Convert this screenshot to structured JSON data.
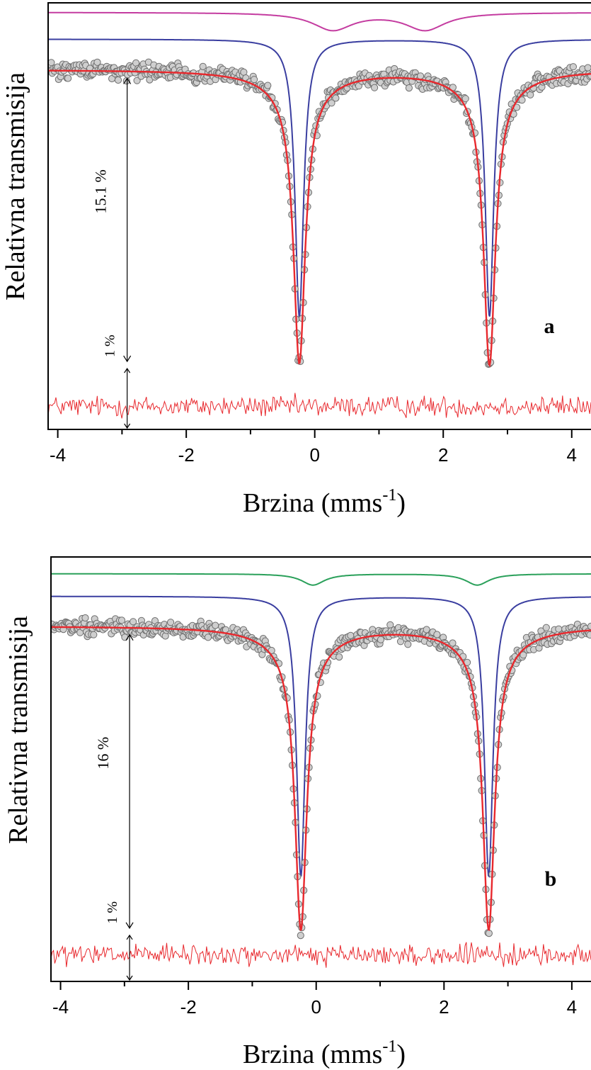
{
  "chart_data": [
    {
      "type": "scatter",
      "panel_label": "a",
      "ylabel": "Relativna transmisija",
      "xlabel_main": "Brzina (mms",
      "xlabel_sup": "-1",
      "xlabel_close": ")",
      "xlim": [
        -4.15,
        4.3
      ],
      "xticks": [
        -4,
        -2,
        0,
        2,
        4
      ],
      "xtick_labels": [
        "-4",
        "-2",
        "0",
        "2",
        "4"
      ],
      "minor_xticks": [
        -3,
        -1,
        1,
        3
      ],
      "ylim": [
        -18.8,
        3.5
      ],
      "baseline_percent": 0,
      "depth_label": "15.1 %",
      "depth_percent": 15.1,
      "residual_scale_label": "1 %",
      "residual_offset_percent": -17.6,
      "series": [
        {
          "role": "data",
          "color": "#8f8f8f",
          "peaks": [
            {
              "center": -0.24,
              "depth": 14.2,
              "hwhm": 0.11
            },
            {
              "center": 2.72,
              "depth": 14.3,
              "hwhm": 0.11
            }
          ],
          "broad": [
            {
              "center": -0.24,
              "depth": 1.1,
              "hwhm": 0.55
            },
            {
              "center": 2.72,
              "depth": 1.1,
              "hwhm": 0.55
            }
          ]
        },
        {
          "role": "fit",
          "color": "#e8282d",
          "peaks": [
            {
              "center": -0.24,
              "depth": 14.2,
              "hwhm": 0.11
            },
            {
              "center": 2.72,
              "depth": 14.3,
              "hwhm": 0.11
            }
          ],
          "broad": [
            {
              "center": -0.24,
              "depth": 1.1,
              "hwhm": 0.55
            },
            {
              "center": 2.72,
              "depth": 1.1,
              "hwhm": 0.55
            }
          ]
        },
        {
          "role": "component",
          "color": "#3a3ea0",
          "offset": 1.6,
          "peaks": [
            {
              "center": -0.24,
              "depth": 14.5,
              "hwhm": 0.08
            },
            {
              "center": 2.72,
              "depth": 14.5,
              "hwhm": 0.08
            }
          ]
        },
        {
          "role": "component",
          "color": "#c43ca0",
          "offset": 3.0,
          "peaks": [
            {
              "center": 0.28,
              "depth": 0.9,
              "hwhm": 0.38
            },
            {
              "center": 1.72,
              "depth": 0.9,
              "hwhm": 0.38
            }
          ]
        },
        {
          "role": "residual",
          "color": "#e8282d"
        }
      ]
    },
    {
      "type": "scatter",
      "panel_label": "b",
      "ylabel": "Relativna transmisija",
      "xlabel_main": "Brzina (mms",
      "xlabel_sup": "-1",
      "xlabel_close": ")",
      "xlim": [
        -4.15,
        4.3
      ],
      "xticks": [
        -4,
        -2,
        0,
        2,
        4
      ],
      "xtick_labels": [
        "-4",
        "-2",
        "0",
        "2",
        "4"
      ],
      "minor_xticks": [
        -3,
        -1,
        1,
        3
      ],
      "ylim": [
        -19.0,
        3.7
      ],
      "baseline_percent": 0,
      "depth_label": "16 %",
      "depth_percent": 16.0,
      "residual_scale_label": "1 %",
      "residual_offset_percent": -17.6,
      "series": [
        {
          "role": "data",
          "color": "#8f8f8f",
          "peaks": [
            {
              "center": -0.24,
              "depth": 15.0,
              "hwhm": 0.11
            },
            {
              "center": 2.7,
              "depth": 15.0,
              "hwhm": 0.11
            }
          ],
          "broad": [
            {
              "center": -0.24,
              "depth": 1.2,
              "hwhm": 0.55
            },
            {
              "center": 2.7,
              "depth": 1.2,
              "hwhm": 0.55
            }
          ]
        },
        {
          "role": "fit",
          "color": "#e8282d",
          "peaks": [
            {
              "center": -0.24,
              "depth": 15.0,
              "hwhm": 0.11
            },
            {
              "center": 2.7,
              "depth": 15.0,
              "hwhm": 0.11
            }
          ],
          "broad": [
            {
              "center": -0.24,
              "depth": 1.2,
              "hwhm": 0.55
            },
            {
              "center": 2.7,
              "depth": 1.2,
              "hwhm": 0.55
            }
          ]
        },
        {
          "role": "component",
          "color": "#3a3ea0",
          "offset": 1.6,
          "peaks": [
            {
              "center": -0.24,
              "depth": 15.0,
              "hwhm": 0.08
            },
            {
              "center": 2.7,
              "depth": 15.0,
              "hwhm": 0.08
            }
          ]
        },
        {
          "role": "component",
          "color": "#2aa05a",
          "offset": 2.8,
          "peaks": [
            {
              "center": -0.05,
              "depth": 0.6,
              "hwhm": 0.22
            },
            {
              "center": 2.52,
              "depth": 0.6,
              "hwhm": 0.22
            }
          ]
        },
        {
          "role": "residual",
          "color": "#e8282d"
        }
      ]
    }
  ]
}
